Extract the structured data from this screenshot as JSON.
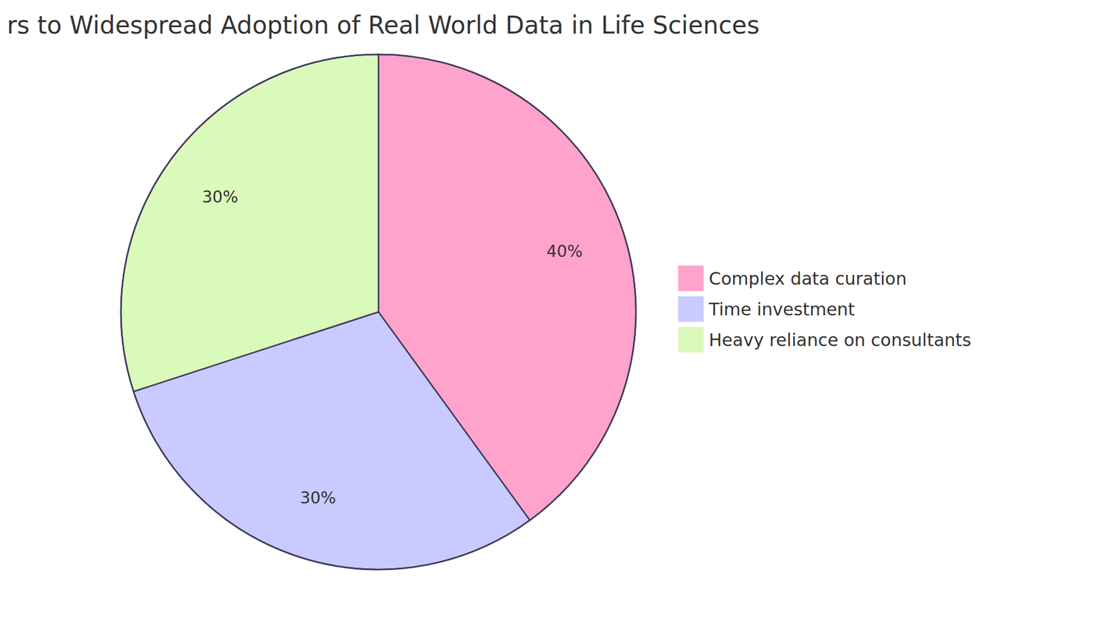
{
  "chart_data": {
    "type": "pie",
    "title": "rs to Widespread Adoption of Real World Data in Life Sciences",
    "categories": [
      "Complex data curation",
      "Time investment",
      "Heavy reliance on consultants"
    ],
    "values": [
      40,
      30,
      30
    ],
    "value_labels": [
      "40%",
      "30%",
      "30%"
    ],
    "colors": [
      "#ffa3cd",
      "#c9caff",
      "#dafabb"
    ],
    "data_labels": true,
    "legend": "right"
  }
}
